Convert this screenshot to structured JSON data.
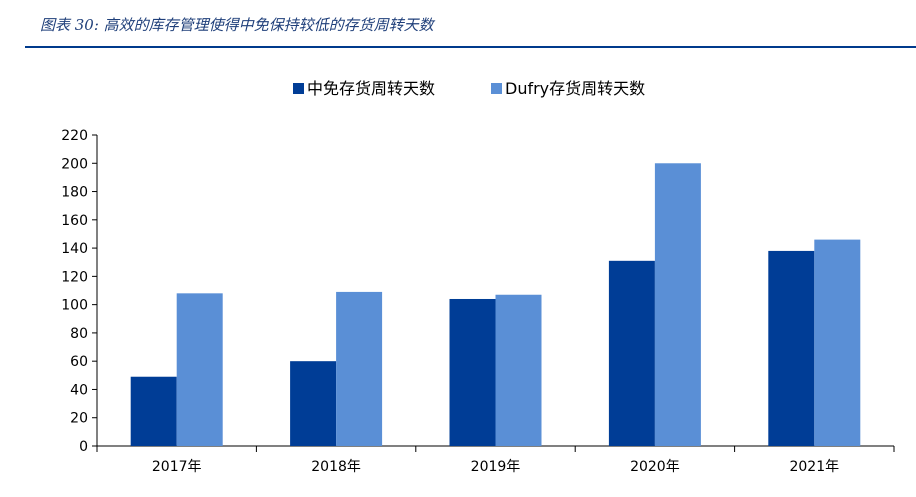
{
  "caption": "图表 30: 高效的库存管理使得中免保持较低的存货周转天数",
  "colors": {
    "series1": "#003d96",
    "series2": "#5a8fd6",
    "caption": "#1f3f7a",
    "rule": "#003a8c"
  },
  "chart_data": {
    "type": "bar",
    "categories": [
      "2017年",
      "2018年",
      "2019年",
      "2020年",
      "2021年"
    ],
    "series": [
      {
        "name": "中免存货周转天数",
        "values": [
          49,
          60,
          104,
          131,
          138
        ]
      },
      {
        "name": "Dufry存货周转天数",
        "values": [
          108,
          109,
          107,
          200,
          146
        ]
      }
    ],
    "yticks": [
      0,
      20,
      40,
      60,
      80,
      100,
      120,
      140,
      160,
      180,
      200,
      220
    ],
    "ylim": [
      0,
      220
    ],
    "legend": "top",
    "grid": false
  }
}
